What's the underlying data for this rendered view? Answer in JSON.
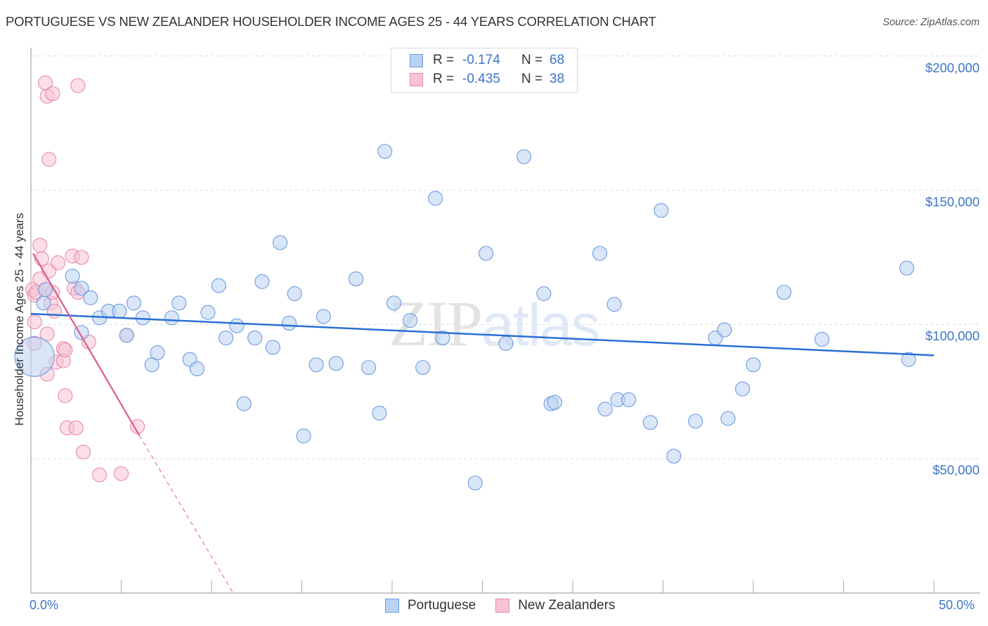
{
  "header": {
    "title": "PORTUGUESE VS NEW ZEALANDER HOUSEHOLDER INCOME AGES 25 - 44 YEARS CORRELATION CHART",
    "source": "Source: ZipAtlas.com"
  },
  "legend": {
    "rows": [
      {
        "r_label": "R =",
        "r_value": "-0.174",
        "n_label": "N =",
        "n_value": "68",
        "series": "Portuguese"
      },
      {
        "r_label": "R =",
        "r_value": "-0.435",
        "n_label": "N =",
        "n_value": "38",
        "series": "New Zealanders"
      }
    ]
  },
  "axes": {
    "y_label": "Householder Income Ages 25 - 44 years",
    "y_ticks": [
      "$200,000",
      "$150,000",
      "$100,000",
      "$50,000"
    ],
    "x_min_label": "0.0%",
    "x_max_label": "50.0%"
  },
  "bottom_legend": [
    {
      "label": "Portuguese"
    },
    {
      "label": "New Zealanders"
    }
  ],
  "watermark": {
    "zip": "ZIP",
    "atlas": "atlas"
  },
  "colors": {
    "blue_fill": "#b9d2f2",
    "blue_stroke": "#6b9be0",
    "blue_line": "#2a6fd4",
    "pink_fill": "#f8c3d3",
    "pink_stroke": "#e98aa8",
    "pink_line": "#e0608a",
    "tick_text": "#3d74c8"
  },
  "chart_data": {
    "type": "scatter",
    "title": "PORTUGUESE VS NEW ZEALANDER HOUSEHOLDER INCOME AGES 25 - 44 YEARS CORRELATION CHART",
    "xlabel": "",
    "ylabel": "Householder Income Ages 25 - 44 years",
    "xlim": [
      0,
      50
    ],
    "ylim": [
      0,
      205000
    ],
    "x_unit": "%",
    "y_ticks": [
      50000,
      100000,
      150000,
      200000
    ],
    "grid": true,
    "legend_position": "top-center",
    "series": [
      {
        "name": "Portuguese",
        "R": -0.174,
        "N": 68,
        "trend": {
          "x": [
            0,
            50
          ],
          "y": [
            104000,
            88500
          ]
        },
        "points": [
          [
            0.2,
            88000
          ],
          [
            0.7,
            108000
          ],
          [
            0.8,
            113000
          ],
          [
            2.3,
            118000
          ],
          [
            2.8,
            113500
          ],
          [
            2.8,
            97000
          ],
          [
            3.3,
            110000
          ],
          [
            3.8,
            102500
          ],
          [
            4.3,
            105000
          ],
          [
            4.9,
            105000
          ],
          [
            5.3,
            96000
          ],
          [
            5.7,
            108000
          ],
          [
            6.2,
            102500
          ],
          [
            6.7,
            85000
          ],
          [
            7.0,
            89500
          ],
          [
            7.8,
            102500
          ],
          [
            8.2,
            108000
          ],
          [
            8.8,
            87000
          ],
          [
            9.2,
            83500
          ],
          [
            9.8,
            104500
          ],
          [
            10.4,
            114500
          ],
          [
            10.8,
            95000
          ],
          [
            11.4,
            99500
          ],
          [
            11.8,
            70500
          ],
          [
            12.4,
            95000
          ],
          [
            12.8,
            116000
          ],
          [
            13.4,
            91500
          ],
          [
            13.8,
            130500
          ],
          [
            14.3,
            100500
          ],
          [
            14.6,
            111500
          ],
          [
            15.1,
            58500
          ],
          [
            15.8,
            85000
          ],
          [
            16.2,
            103000
          ],
          [
            16.9,
            85500
          ],
          [
            18.0,
            117000
          ],
          [
            18.7,
            84000
          ],
          [
            19.3,
            67000
          ],
          [
            19.6,
            164500
          ],
          [
            20.1,
            108000
          ],
          [
            21.0,
            101500
          ],
          [
            21.7,
            84000
          ],
          [
            22.4,
            147000
          ],
          [
            22.8,
            95000
          ],
          [
            24.6,
            41000
          ],
          [
            25.2,
            126500
          ],
          [
            26.3,
            93000
          ],
          [
            27.3,
            162500
          ],
          [
            28.4,
            111500
          ],
          [
            28.8,
            70500
          ],
          [
            29.0,
            71000
          ],
          [
            31.5,
            126500
          ],
          [
            31.8,
            68500
          ],
          [
            32.3,
            107500
          ],
          [
            32.5,
            72000
          ],
          [
            33.1,
            72000
          ],
          [
            34.3,
            63500
          ],
          [
            34.9,
            142500
          ],
          [
            35.6,
            51000
          ],
          [
            36.8,
            64000
          ],
          [
            37.9,
            95000
          ],
          [
            38.4,
            98000
          ],
          [
            38.6,
            65000
          ],
          [
            39.4,
            76000
          ],
          [
            40.0,
            85000
          ],
          [
            41.7,
            112000
          ],
          [
            43.8,
            94500
          ],
          [
            48.5,
            121000
          ],
          [
            48.6,
            87000
          ]
        ]
      },
      {
        "name": "New Zealanders",
        "R": -0.435,
        "N": 38,
        "trend": {
          "x": [
            0,
            11.2
          ],
          "y": [
            126500,
            0
          ],
          "solid_until_x": 6.0
        },
        "points": [
          [
            0.1,
            113000
          ],
          [
            0.2,
            111000
          ],
          [
            0.2,
            101000
          ],
          [
            0.2,
            93000
          ],
          [
            0.3,
            112000
          ],
          [
            0.5,
            129500
          ],
          [
            0.5,
            117000
          ],
          [
            0.6,
            124500
          ],
          [
            0.8,
            113000
          ],
          [
            0.9,
            96500
          ],
          [
            0.9,
            81500
          ],
          [
            1.0,
            120000
          ],
          [
            1.1,
            108000
          ],
          [
            1.2,
            112000
          ],
          [
            1.3,
            105000
          ],
          [
            0.8,
            190000
          ],
          [
            0.9,
            185000
          ],
          [
            1.2,
            186000
          ],
          [
            1.0,
            161500
          ],
          [
            1.4,
            86000
          ],
          [
            1.5,
            123000
          ],
          [
            1.8,
            91000
          ],
          [
            1.8,
            86500
          ],
          [
            1.9,
            73500
          ],
          [
            1.9,
            90500
          ],
          [
            2.0,
            61500
          ],
          [
            2.3,
            125500
          ],
          [
            2.4,
            113500
          ],
          [
            2.5,
            61500
          ],
          [
            2.6,
            189000
          ],
          [
            2.8,
            125000
          ],
          [
            2.9,
            52500
          ],
          [
            3.2,
            93500
          ],
          [
            3.8,
            44000
          ],
          [
            5.0,
            44500
          ],
          [
            5.3,
            96000
          ],
          [
            5.9,
            62000
          ],
          [
            2.6,
            112000
          ]
        ]
      }
    ]
  }
}
